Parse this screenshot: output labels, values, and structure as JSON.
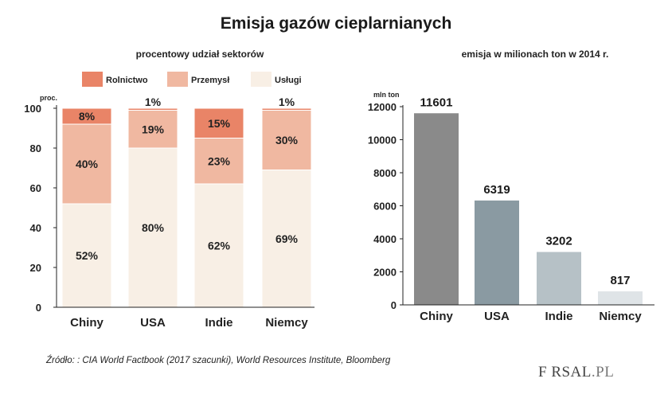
{
  "title": "Emisja gazów cieplarnianych",
  "source": "Źródło: : CIA World Factbook (2017 szacunki), World Resources Institute, Bloomberg",
  "logo": {
    "main": "F  RSAL",
    "suffix": ".PL"
  },
  "chart_data": [
    {
      "type": "bar",
      "stacked": true,
      "subtitle": "procentowy udział sektorów",
      "ylabel": "proc.",
      "ylim": [
        0,
        100
      ],
      "yticks": [
        0,
        20,
        40,
        60,
        80,
        100
      ],
      "categories": [
        "Chiny",
        "USA",
        "Indie",
        "Niemcy"
      ],
      "legend": "top",
      "series": [
        {
          "name": "Usługi",
          "values": [
            52,
            80,
            62,
            69
          ],
          "labels": [
            "52%",
            "80%",
            "62%",
            "69%"
          ],
          "color": "#f8efe5"
        },
        {
          "name": "Przemysł",
          "values": [
            40,
            19,
            23,
            30
          ],
          "labels": [
            "40%",
            "19%",
            "23%",
            "30%"
          ],
          "color": "#f0b8a1"
        },
        {
          "name": "Rolnictwo",
          "values": [
            8,
            1,
            15,
            1
          ],
          "labels": [
            "8%",
            "1%",
            "15%",
            "1%"
          ],
          "color": "#e98467"
        }
      ]
    },
    {
      "type": "bar",
      "subtitle": "emisja w milionach ton w 2014 r.",
      "ylabel": "mln ton",
      "ylim": [
        0,
        12000
      ],
      "yticks": [
        0,
        2000,
        4000,
        6000,
        8000,
        10000,
        12000
      ],
      "categories": [
        "Chiny",
        "USA",
        "Indie",
        "Niemcy"
      ],
      "values": [
        11601,
        6319,
        3202,
        817
      ],
      "labels": [
        "11601",
        "6319",
        "3202",
        "817"
      ],
      "colors": [
        "#8a8a8a",
        "#8a9aa2",
        "#b6c1c6",
        "#dfe4e7"
      ]
    }
  ]
}
